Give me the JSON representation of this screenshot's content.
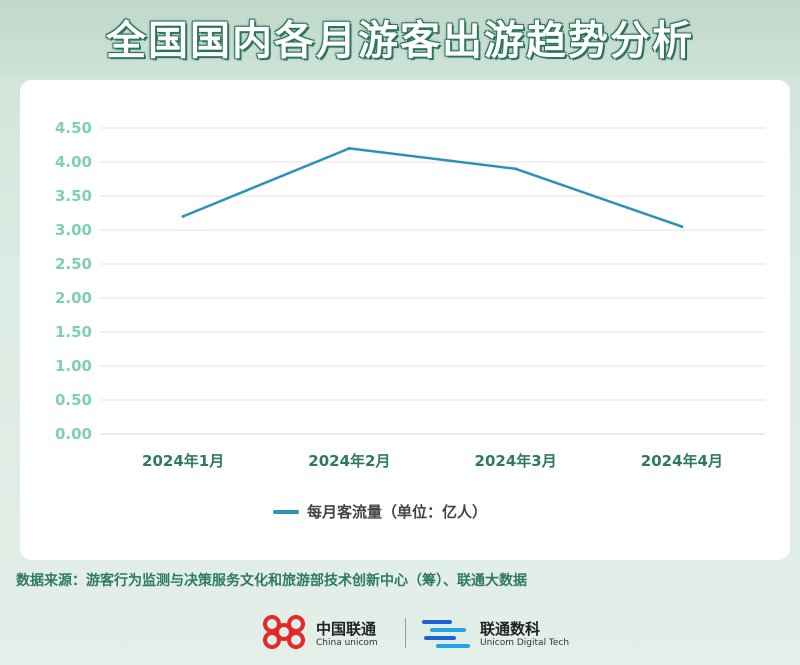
{
  "page": {
    "title": "全国国内各月游客出游趋势分析",
    "source": "数据来源：游客行为监测与决策服务文化和旅游部技术创新中心（筹）、联通大数据"
  },
  "logos": {
    "unicom_cn": "中国联通",
    "unicom_en": "China unicom",
    "digital_cn": "联通数科",
    "digital_en": "Unicom Digital Tech"
  },
  "colors": {
    "line": "#2a93b8",
    "axis_text": "#7fcfb3",
    "category_text": "#2e7a5e",
    "grid": "#e3e3e3"
  },
  "chart_data": {
    "type": "line",
    "title": "",
    "xlabel": "",
    "ylabel": "",
    "categories": [
      "2024年1月",
      "2024年2月",
      "2024年3月",
      "2024年4月"
    ],
    "series": [
      {
        "name": "每月客流量（单位：亿人）",
        "values": [
          3.2,
          4.2,
          3.9,
          3.05
        ]
      }
    ],
    "y_ticks": [
      "0.00",
      "0.50",
      "1.00",
      "1.50",
      "2.00",
      "2.50",
      "3.00",
      "3.50",
      "4.00",
      "4.50"
    ],
    "ylim": [
      0,
      4.5
    ],
    "grid": true,
    "legend_position": "bottom-center"
  }
}
